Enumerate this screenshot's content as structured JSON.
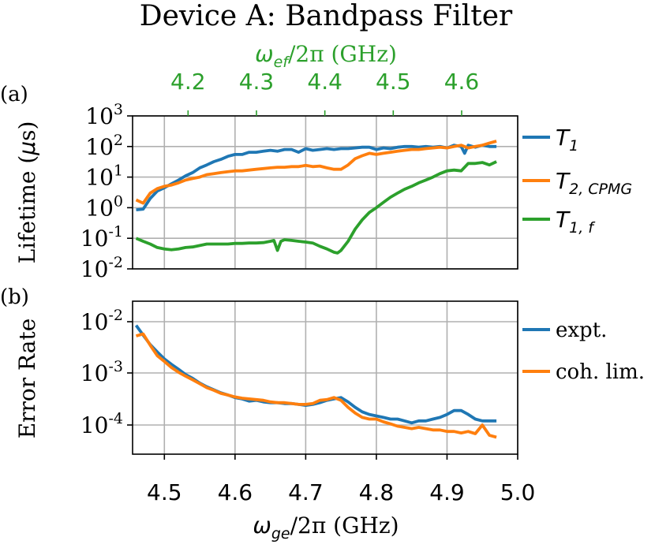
{
  "title": "Device A: Bandpass Filter",
  "colors": {
    "blue": "#1f77b4",
    "orange": "#ff7f0e",
    "green": "#2ca02c"
  },
  "panel_labels": {
    "a": "(a)",
    "b": "(b)"
  },
  "top_axis": {
    "label_omega": "ω",
    "label_sub": "ef",
    "label_rest": "/2π (GHz)",
    "ticks": [
      "4.2",
      "4.3",
      "4.4",
      "4.5",
      "4.6"
    ]
  },
  "bottom_axis": {
    "label_omega": "ω",
    "label_sub": "ge",
    "label_rest": "/2π (GHz)",
    "ticks": [
      "4.5",
      "4.6",
      "4.7",
      "4.8",
      "4.9",
      "5.0"
    ]
  },
  "panel_a": {
    "ylabel_main": "Lifetime (",
    "ylabel_mu": "μ",
    "ylabel_end": "s)",
    "ytick_exponents": [
      "-2",
      "-1",
      "0",
      "1",
      "2",
      "3"
    ],
    "legend": [
      {
        "sym": "T",
        "sub": "1"
      },
      {
        "sym": "T",
        "sub": "2, CPMG"
      },
      {
        "sym": "T",
        "sub": "1, f"
      }
    ]
  },
  "panel_b": {
    "ylabel": "Error Rate",
    "ytick_exponents": [
      "-4",
      "-3",
      "-2"
    ],
    "legend": [
      "expt.",
      "coh. lim."
    ]
  },
  "chart_data": [
    {
      "type": "line",
      "title": "Device A: Bandpass Filter",
      "xlabel": "ωge/2π (GHz)",
      "x2label": "ωef/2π (GHz)",
      "ylabel": "Lifetime (μs)",
      "yscale": "log",
      "xlim": [
        4.455,
        5.0
      ],
      "ylim": [
        0.01,
        1000
      ],
      "x2_ticks": [
        4.2,
        4.3,
        4.4,
        4.5,
        4.6
      ],
      "x2_tick_positions_in_x": [
        4.5335,
        4.6303,
        4.7271,
        4.8239,
        4.9207
      ],
      "grid": true,
      "legend_position": "outside-right",
      "series": [
        {
          "name": "T1",
          "x": [
            4.46,
            4.47,
            4.48,
            4.49,
            4.5,
            4.51,
            4.52,
            4.53,
            4.54,
            4.55,
            4.56,
            4.57,
            4.58,
            4.59,
            4.6,
            4.61,
            4.62,
            4.63,
            4.64,
            4.65,
            4.66,
            4.67,
            4.68,
            4.69,
            4.7,
            4.71,
            4.72,
            4.73,
            4.74,
            4.75,
            4.76,
            4.77,
            4.78,
            4.79,
            4.8,
            4.81,
            4.82,
            4.83,
            4.84,
            4.85,
            4.86,
            4.87,
            4.88,
            4.89,
            4.9,
            4.91,
            4.92,
            4.925,
            4.93,
            4.94,
            4.95,
            4.96,
            4.97
          ],
          "y": [
            0.85,
            0.9,
            2.0,
            3.5,
            4.5,
            6.0,
            8.0,
            11,
            14,
            20,
            25,
            32,
            38,
            48,
            55,
            55,
            65,
            65,
            70,
            75,
            70,
            80,
            80,
            65,
            85,
            75,
            80,
            85,
            80,
            85,
            85,
            90,
            95,
            95,
            80,
            90,
            85,
            95,
            100,
            100,
            95,
            100,
            95,
            100,
            90,
            110,
            100,
            60,
            110,
            95,
            110,
            100,
            100
          ]
        },
        {
          "name": "T2, CPMG",
          "x": [
            4.46,
            4.47,
            4.48,
            4.49,
            4.5,
            4.51,
            4.52,
            4.53,
            4.54,
            4.55,
            4.56,
            4.57,
            4.58,
            4.59,
            4.6,
            4.61,
            4.62,
            4.63,
            4.64,
            4.65,
            4.66,
            4.67,
            4.68,
            4.69,
            4.7,
            4.71,
            4.72,
            4.73,
            4.74,
            4.75,
            4.76,
            4.77,
            4.78,
            4.79,
            4.8,
            4.81,
            4.82,
            4.83,
            4.84,
            4.85,
            4.86,
            4.87,
            4.88,
            4.89,
            4.9,
            4.91,
            4.92,
            4.93,
            4.94,
            4.95,
            4.96,
            4.97
          ],
          "y": [
            1.8,
            1.4,
            3.0,
            4.2,
            5.0,
            5.5,
            6.5,
            8.0,
            9.0,
            10,
            12,
            13,
            14,
            15,
            16,
            16,
            17,
            18,
            19,
            20,
            21,
            21,
            22,
            22,
            24,
            22,
            23,
            20,
            18,
            18,
            25,
            40,
            50,
            60,
            55,
            60,
            65,
            70,
            75,
            80,
            80,
            85,
            90,
            95,
            90,
            100,
            110,
            90,
            100,
            110,
            130,
            150
          ]
        },
        {
          "name": "T1, f",
          "x": [
            4.46,
            4.47,
            4.48,
            4.49,
            4.5,
            4.51,
            4.52,
            4.53,
            4.54,
            4.55,
            4.56,
            4.57,
            4.58,
            4.59,
            4.6,
            4.61,
            4.62,
            4.63,
            4.64,
            4.65,
            4.655,
            4.66,
            4.665,
            4.67,
            4.68,
            4.69,
            4.7,
            4.71,
            4.72,
            4.73,
            4.74,
            4.745,
            4.75,
            4.76,
            4.77,
            4.78,
            4.79,
            4.8,
            4.81,
            4.82,
            4.83,
            4.84,
            4.85,
            4.86,
            4.87,
            4.88,
            4.89,
            4.9,
            4.91,
            4.92,
            4.93,
            4.94,
            4.95,
            4.96,
            4.97
          ],
          "y": [
            0.1,
            0.08,
            0.065,
            0.05,
            0.045,
            0.042,
            0.045,
            0.05,
            0.052,
            0.058,
            0.065,
            0.065,
            0.065,
            0.065,
            0.068,
            0.068,
            0.07,
            0.07,
            0.072,
            0.08,
            0.085,
            0.04,
            0.08,
            0.09,
            0.085,
            0.08,
            0.075,
            0.07,
            0.055,
            0.045,
            0.035,
            0.033,
            0.04,
            0.08,
            0.2,
            0.4,
            0.7,
            1.0,
            1.5,
            2.2,
            3.0,
            4.0,
            5.0,
            6.5,
            8.0,
            10,
            13,
            16,
            17,
            16,
            28,
            28,
            30,
            25,
            32
          ]
        }
      ]
    },
    {
      "type": "line",
      "xlabel": "ωge/2π (GHz)",
      "ylabel": "Error Rate",
      "yscale": "log",
      "xlim": [
        4.455,
        5.0
      ],
      "ylim": [
        2e-05,
        0.012
      ],
      "grid": true,
      "legend_position": "outside-right",
      "series": [
        {
          "name": "expt.",
          "x": [
            4.46,
            4.47,
            4.48,
            4.49,
            4.5,
            4.51,
            4.52,
            4.53,
            4.54,
            4.55,
            4.56,
            4.57,
            4.58,
            4.59,
            4.6,
            4.61,
            4.62,
            4.63,
            4.64,
            4.65,
            4.66,
            4.67,
            4.68,
            4.69,
            4.7,
            4.71,
            4.72,
            4.73,
            4.74,
            4.75,
            4.76,
            4.77,
            4.78,
            4.79,
            4.8,
            4.81,
            4.82,
            4.83,
            4.84,
            4.85,
            4.86,
            4.87,
            4.88,
            4.89,
            4.9,
            4.91,
            4.92,
            4.93,
            4.94,
            4.95,
            4.96,
            4.97
          ],
          "y": [
            0.0085,
            0.0055,
            0.0036,
            0.0026,
            0.0019,
            0.0015,
            0.0012,
            0.00095,
            0.0008,
            0.00065,
            0.00055,
            0.00048,
            0.00042,
            0.00038,
            0.00034,
            0.00032,
            0.00029,
            0.0003,
            0.00028,
            0.00027,
            0.00027,
            0.00026,
            0.00026,
            0.00025,
            0.00024,
            0.00025,
            0.00027,
            0.0003,
            0.00032,
            0.00034,
            0.00028,
            0.00022,
            0.00018,
            0.00016,
            0.00015,
            0.00014,
            0.00013,
            0.00013,
            0.00012,
            0.00011,
            0.00012,
            0.00012,
            0.00013,
            0.00014,
            0.00016,
            0.00019,
            0.00019,
            0.00016,
            0.00013,
            0.00012,
            0.00012,
            0.00012
          ]
        },
        {
          "name": "coh. lim.",
          "x": [
            4.46,
            4.47,
            4.48,
            4.49,
            4.5,
            4.51,
            4.52,
            4.53,
            4.54,
            4.55,
            4.56,
            4.57,
            4.58,
            4.59,
            4.6,
            4.61,
            4.62,
            4.63,
            4.64,
            4.65,
            4.66,
            4.67,
            4.68,
            4.69,
            4.7,
            4.71,
            4.72,
            4.73,
            4.74,
            4.75,
            4.76,
            4.77,
            4.78,
            4.79,
            4.8,
            4.81,
            4.82,
            4.83,
            4.84,
            4.85,
            4.86,
            4.87,
            4.88,
            4.89,
            4.9,
            4.91,
            4.92,
            4.93,
            4.94,
            4.95,
            4.96,
            4.97
          ],
          "y": [
            0.0053,
            0.0058,
            0.0035,
            0.0022,
            0.0017,
            0.0013,
            0.00105,
            0.00088,
            0.00075,
            0.00063,
            0.00053,
            0.00047,
            0.00041,
            0.00038,
            0.00035,
            0.00033,
            0.00032,
            0.00031,
            0.0003,
            0.00028,
            0.00027,
            0.00027,
            0.00026,
            0.00025,
            0.00025,
            0.00026,
            0.0003,
            0.00031,
            0.00034,
            0.0003,
            0.00022,
            0.00017,
            0.00014,
            0.00013,
            0.00013,
            0.000115,
            0.000105,
            9.5e-05,
            9e-05,
            8.5e-05,
            9e-05,
            8.5e-05,
            8e-05,
            8e-05,
            7.5e-05,
            7.5e-05,
            7e-05,
            7.5e-05,
            6.8e-05,
            0.0001,
            6.3e-05,
            5.8e-05
          ]
        }
      ]
    }
  ]
}
